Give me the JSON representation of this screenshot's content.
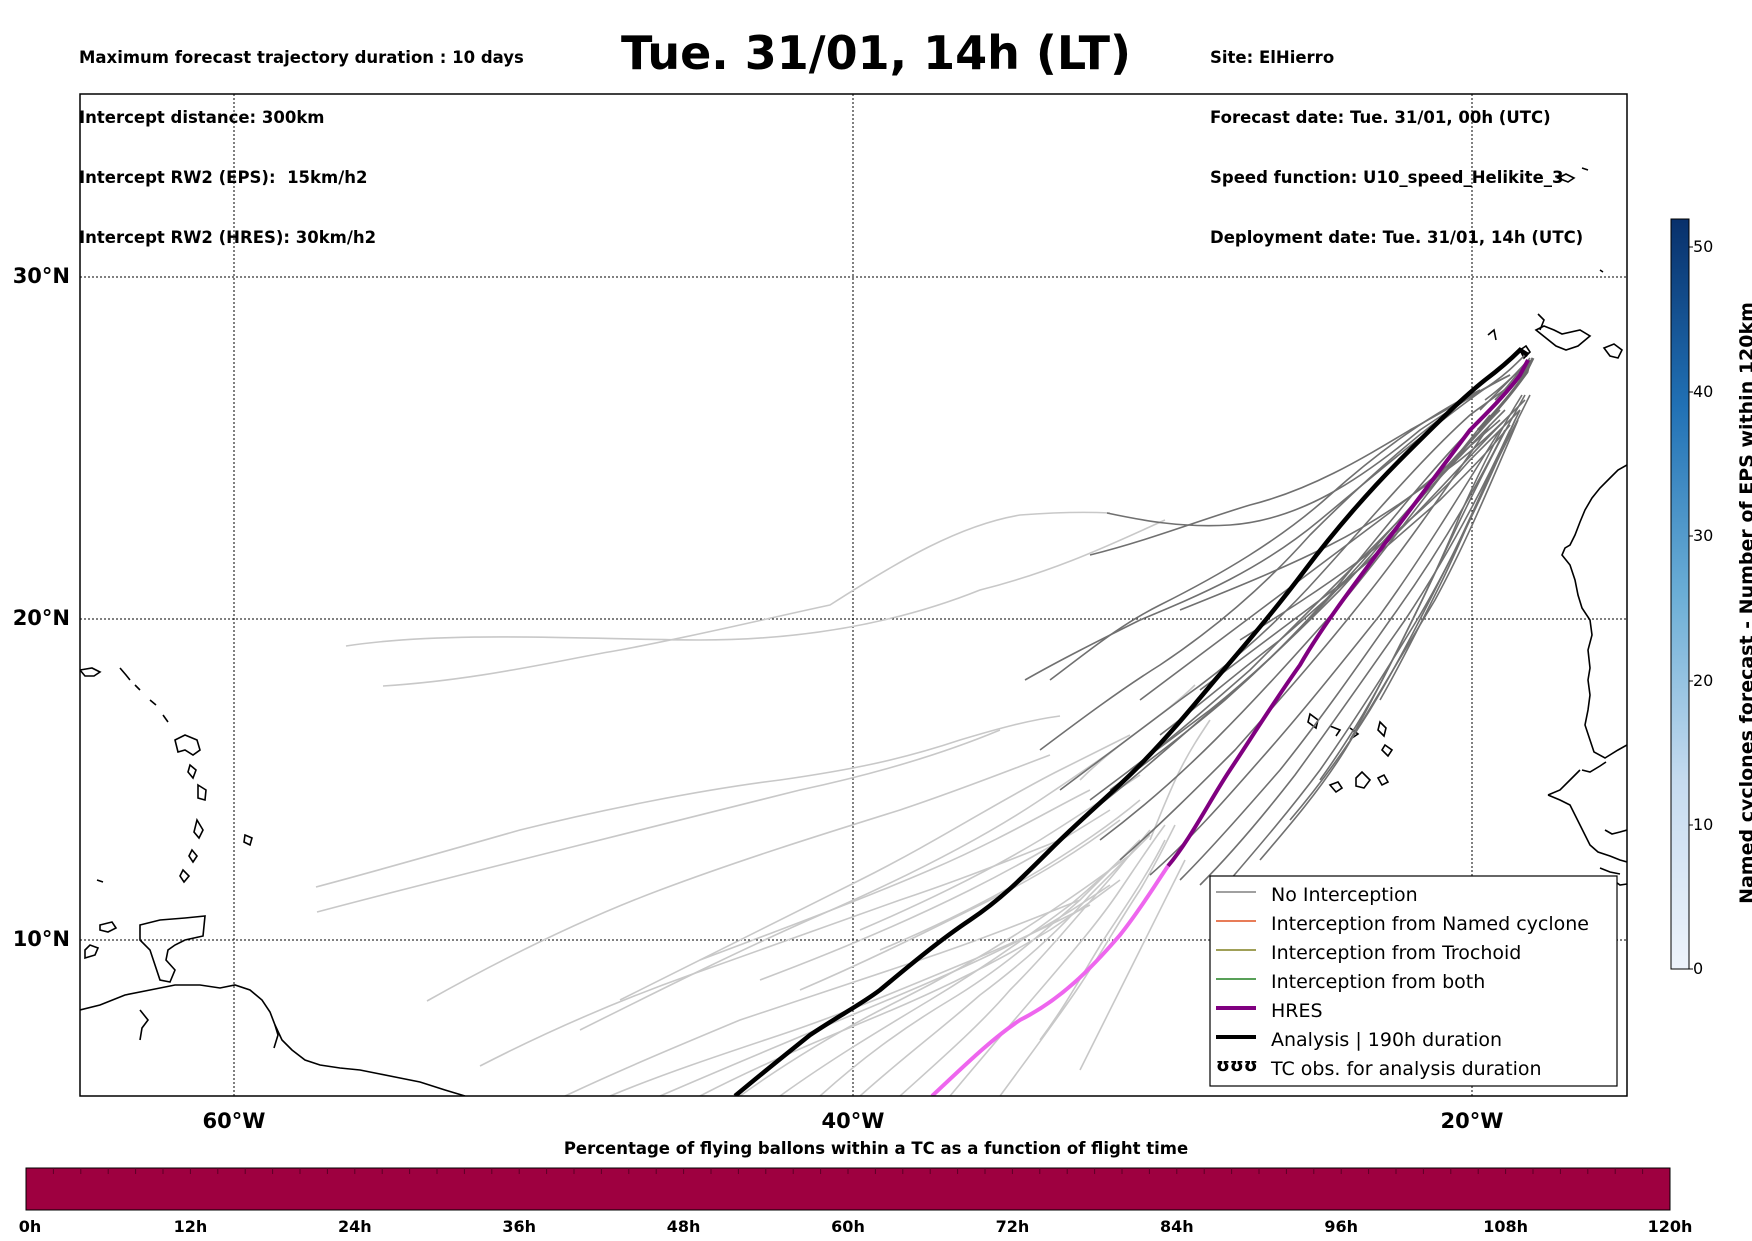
{
  "header": {
    "left_lines": [
      "Maximum forecast trajectory duration : 10 days",
      "Intercept distance: 300km",
      "Intercept RW2 (EPS):  15km/h2",
      "Intercept RW2 (HRES): 30km/h2"
    ],
    "title": "Tue. 31/01, 14h (LT)",
    "right_lines": [
      "Site: ElHierro",
      "Forecast date: Tue. 31/01, 00h (UTC)",
      "Speed function: U10_speed_Helikite_3",
      "Deployment date: Tue. 31/01, 14h (UTC)"
    ]
  },
  "map": {
    "lat_labels": [
      "30°N",
      "20°N",
      "10°N"
    ],
    "lon_labels": [
      "60°W",
      "40°W",
      "20°W"
    ],
    "grid_color": "#000000",
    "land_outline_color": "#000000"
  },
  "legend": {
    "items": [
      {
        "label": "No Interception",
        "color": "#808080"
      },
      {
        "label": "Interception from Named cyclone",
        "color": "#e05020"
      },
      {
        "label": "Interception from Trochoid",
        "color": "#808020"
      },
      {
        "label": "Interception from both",
        "color": "#208020"
      },
      {
        "label": "HRES",
        "color": "#800080"
      },
      {
        "label": "Analysis | 190h duration",
        "color": "#000000"
      },
      {
        "label": "TC obs. for analysis duration",
        "color": "#000000"
      }
    ],
    "tc_symbol": "ʊʊʊ"
  },
  "colorbar": {
    "title": "Named cyclones forecast - Number of EPS within 120km",
    "ticks": [
      "50",
      "40",
      "30",
      "20",
      "10",
      "0"
    ],
    "color_low": "#e8f0fa",
    "color_high": "#08306b"
  },
  "bottom_bar": {
    "title": "Percentage of flying ballons within a TC as a function of flight time",
    "ticks": [
      "0h",
      "12h",
      "24h",
      "36h",
      "48h",
      "60h",
      "72h",
      "84h",
      "96h",
      "108h",
      "120h"
    ],
    "fill_color": "#9e0040"
  }
}
